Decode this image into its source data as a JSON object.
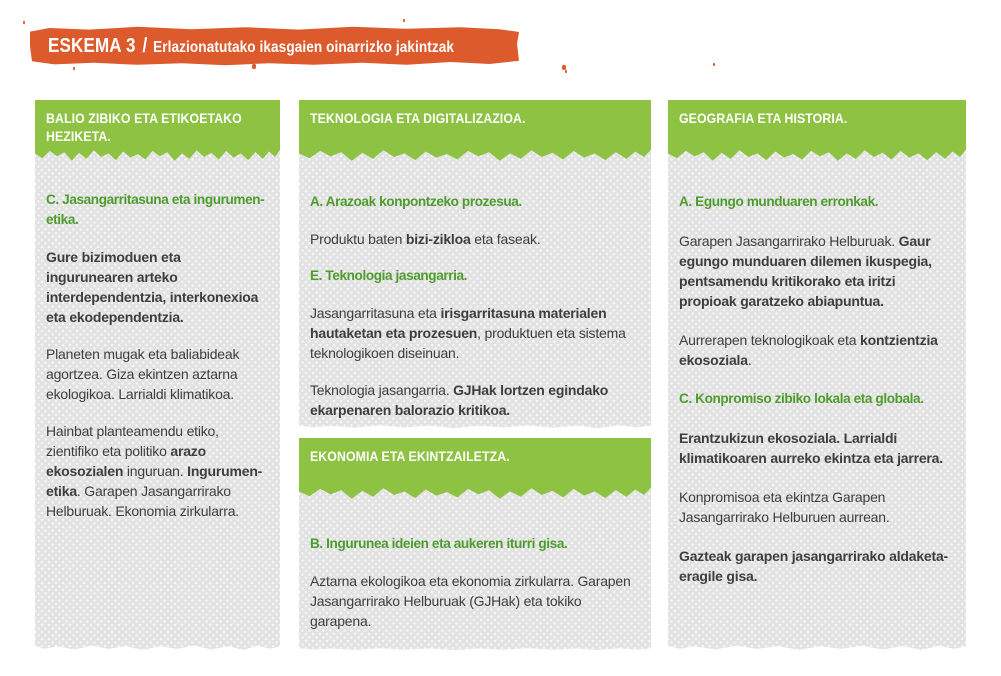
{
  "banner": {
    "title": "ESKEMA 3",
    "separator": "/",
    "subtitle": "Erlazionatutako ikasgaien oinarrizko jakintzak"
  },
  "colors": {
    "banner_orange": "#dd5a2c",
    "header_green": "#8dc242",
    "subhead_green": "#4e9c2e",
    "panel_gray": "#e2e2e2",
    "body_text": "#3e3e3e",
    "banner_text": "#ffffff"
  },
  "columns": [
    {
      "cards": [
        {
          "header": "BALIO ZIBIKO ETA ETIKOETAKO HEZIKETA.",
          "blocks": [
            {
              "type": "subhead",
              "runs": [
                {
                  "t": "C. Jasangarritasuna eta ingurumen-etika.",
                  "b": true
                }
              ]
            },
            {
              "type": "para",
              "runs": [
                {
                  "t": "Gure bizimoduen eta ingurunearen arteko interdependentzia, interkonexioa eta ekodependentzia.",
                  "b": true
                }
              ]
            },
            {
              "type": "para",
              "runs": [
                {
                  "t": "Planeten mugak eta baliabideak agortzea. Giza ekintzen aztarna ekologikoa. Larrialdi klimatikoa.",
                  "b": false
                }
              ]
            },
            {
              "type": "para",
              "runs": [
                {
                  "t": "Hainbat planteamendu etiko, zientifiko eta politiko ",
                  "b": false
                },
                {
                  "t": "arazo ekosozialen",
                  "b": true
                },
                {
                  "t": " inguruan. ",
                  "b": false
                },
                {
                  "t": "Ingurumen-etika",
                  "b": true
                },
                {
                  "t": ". Garapen Jasangarrirako Helburuak. Ekonomia zirkularra.",
                  "b": false
                }
              ]
            }
          ]
        }
      ]
    },
    {
      "cards": [
        {
          "header": "TEKNOLOGIA ETA DIGITALIZAZIOA.",
          "blocks": [
            {
              "type": "subhead",
              "runs": [
                {
                  "t": "A. Arazoak konpontzeko prozesua.",
                  "b": true
                }
              ]
            },
            {
              "type": "para",
              "runs": [
                {
                  "t": "Produktu baten ",
                  "b": false
                },
                {
                  "t": "bizi-zikloa",
                  "b": true
                },
                {
                  "t": " eta faseak.",
                  "b": false
                }
              ]
            },
            {
              "type": "subhead",
              "runs": [
                {
                  "t": "E. Teknologia jasangarria.",
                  "b": true
                }
              ]
            },
            {
              "type": "para",
              "runs": [
                {
                  "t": "Jasangarritasuna eta ",
                  "b": false
                },
                {
                  "t": "irisgarritasuna materialen hautaketan eta prozesuen",
                  "b": true
                },
                {
                  "t": ", produktuen eta sistema teknologikoen diseinuan.",
                  "b": false
                }
              ]
            },
            {
              "type": "para",
              "runs": [
                {
                  "t": "Teknologia jasangarria. ",
                  "b": false
                },
                {
                  "t": "GJHak lortzen egindako ekarpenaren balorazio kritikoa.",
                  "b": true
                }
              ]
            }
          ]
        },
        {
          "header": "EKONOMIA ETA EKINTZAILETZA.",
          "blocks": [
            {
              "type": "subhead",
              "runs": [
                {
                  "t": "B. Ingurunea ideien eta aukeren iturri gisa.",
                  "b": true
                }
              ]
            },
            {
              "type": "para",
              "runs": [
                {
                  "t": "Aztarna ekologikoa eta ekonomia zirkularra. Garapen Jasangarrirako Helburuak (GJHak) eta tokiko garapena.",
                  "b": false
                }
              ]
            }
          ]
        }
      ]
    },
    {
      "cards": [
        {
          "header": "GEOGRAFIA ETA HISTORIA.",
          "blocks": [
            {
              "type": "subhead",
              "runs": [
                {
                  "t": "A. Egungo munduaren erronkak.",
                  "b": true
                }
              ]
            },
            {
              "type": "para",
              "runs": [
                {
                  "t": "Garapen Jasangarrirako Helburuak. ",
                  "b": false
                },
                {
                  "t": "Gaur egungo munduaren dilemen ikuspegia, pentsamendu kritikorako eta iritzi propioak garatzeko abiapuntua.",
                  "b": true
                }
              ]
            },
            {
              "type": "para",
              "runs": [
                {
                  "t": "Aurrerapen teknologikoak eta ",
                  "b": false
                },
                {
                  "t": "kontzientzia ekosoziala",
                  "b": true
                },
                {
                  "t": ".",
                  "b": false
                }
              ]
            },
            {
              "type": "subhead",
              "runs": [
                {
                  "t": "C. Konpromiso zibiko lokala eta globala.",
                  "b": true
                }
              ]
            },
            {
              "type": "para",
              "runs": [
                {
                  "t": "Erantzukizun ekosoziala. Larrialdi klimatikoaren aurreko ekintza eta jarrera.",
                  "b": true
                }
              ]
            },
            {
              "type": "para",
              "runs": [
                {
                  "t": "Konpromisoa eta ekintza Garapen Jasangarrirako Helburuen aurrean.",
                  "b": false
                }
              ]
            },
            {
              "type": "para",
              "runs": [
                {
                  "t": "Gazteak garapen jasangarrirako aldaketa-eragile gisa.",
                  "b": true
                }
              ]
            }
          ]
        }
      ]
    }
  ]
}
